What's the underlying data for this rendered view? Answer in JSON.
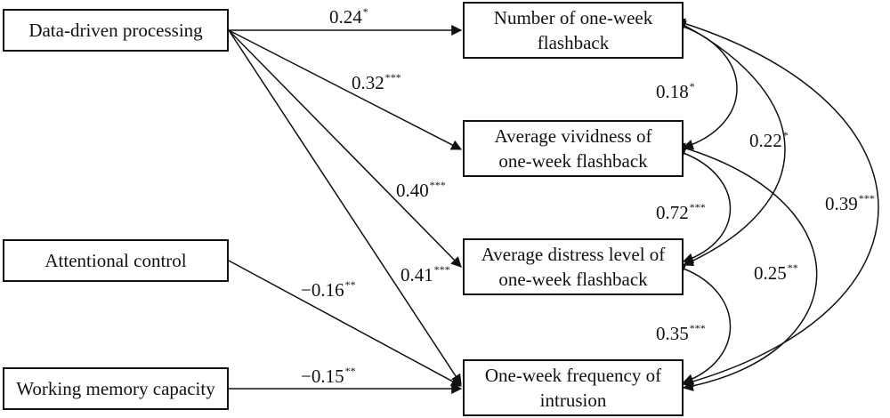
{
  "predictors": {
    "data_driven": "Data-driven processing",
    "attentional": "Attentional control",
    "working_memory": "Working memory capacity"
  },
  "outcomes": {
    "number": [
      "Number of one-week",
      "flashback"
    ],
    "vividness": [
      "Average vividness of",
      "one-week flashback"
    ],
    "distress": [
      "Average distress level of",
      "one-week flashback"
    ],
    "intrusion": [
      "One-week frequency of",
      "intrusion"
    ]
  },
  "paths": {
    "dd_number": {
      "value": "0.24",
      "sig": "*"
    },
    "dd_vividness": {
      "value": "0.32",
      "sig": "***"
    },
    "dd_distress": {
      "value": "0.40",
      "sig": "***"
    },
    "dd_intrusion": {
      "value": "0.41",
      "sig": "***"
    },
    "ac_intrusion": {
      "value": "−0.16",
      "sig": "**"
    },
    "wm_intrusion": {
      "value": "−0.15",
      "sig": "**"
    }
  },
  "correlations": {
    "number_vividness": {
      "value": "0.18",
      "sig": "*"
    },
    "number_distress": {
      "value": "0.22",
      "sig": "*"
    },
    "number_intrusion": {
      "value": "0.39",
      "sig": "***"
    },
    "vividness_distress": {
      "value": "0.72",
      "sig": "***"
    },
    "vividness_intrusion": {
      "value": "0.25",
      "sig": "**"
    },
    "distress_intrusion": {
      "value": "0.35",
      "sig": "***"
    }
  }
}
